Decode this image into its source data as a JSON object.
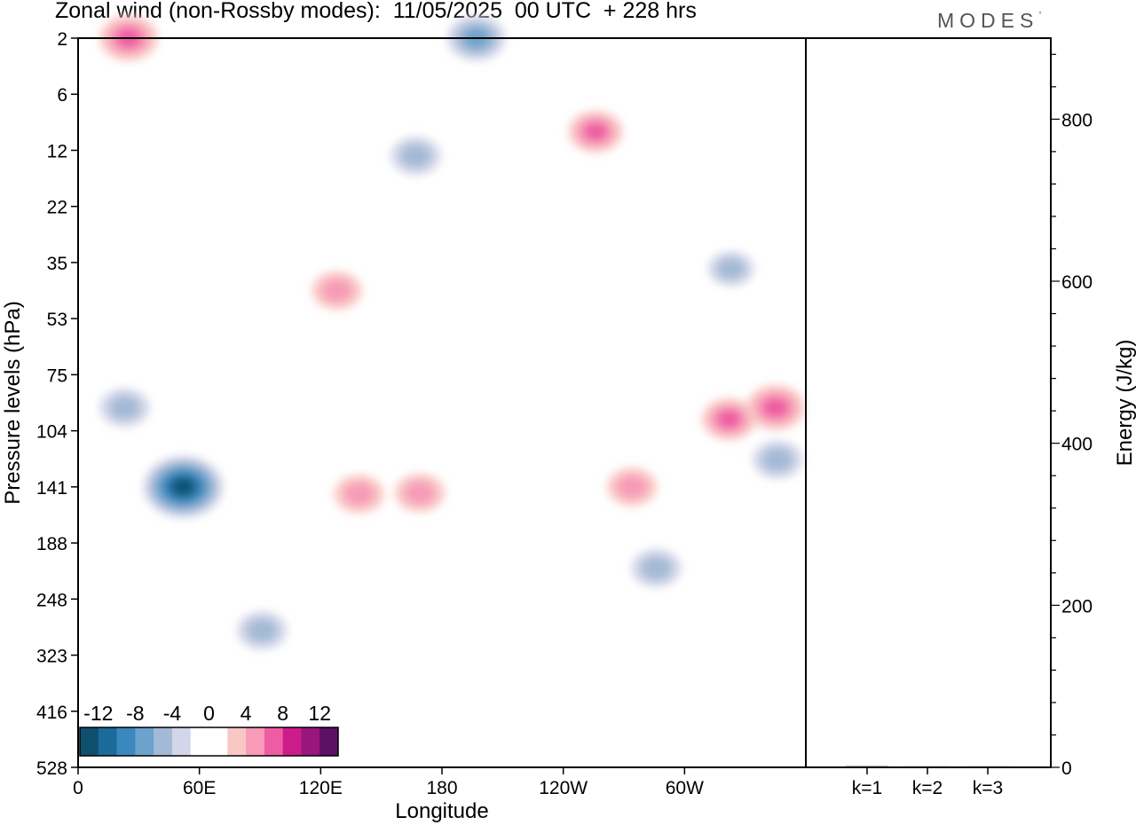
{
  "header": {
    "title": "Zonal wind (non-Rossby modes):  11/05/2025  00 UTC  + 228 hrs",
    "brand": "MODES",
    "brand_mark": "°"
  },
  "chart_data": [
    {
      "type": "heatmap",
      "title": "Zonal wind (non-Rossby modes):  11/05/2025  00 UTC  + 228 hrs",
      "xlabel": "Longitude",
      "ylabel": "Pressure levels (hPa)",
      "x_ticks": [
        "0",
        "60E",
        "120E",
        "180",
        "120W",
        "60W"
      ],
      "x_range_deg": [
        0,
        360
      ],
      "y_ticks": [
        2,
        6,
        12,
        22,
        35,
        53,
        75,
        104,
        141,
        188,
        248,
        323,
        416,
        528
      ],
      "y_axis": "levels, top = 2 hPa, bottom = 528 hPa",
      "colorbar": {
        "labels": [
          "-12",
          "-8",
          "-4",
          "0",
          "4",
          "8",
          "12"
        ],
        "levels": [
          -14,
          -12,
          -10,
          -8,
          -6,
          -4,
          -2,
          0,
          2,
          4,
          6,
          8,
          10,
          12,
          14
        ],
        "colors": [
          "#0f4f6e",
          "#1a6b9a",
          "#3a88be",
          "#6ba3cc",
          "#a3bad6",
          "#d3d6e8",
          "#ffffff",
          "#ffffff",
          "#f9c8c4",
          "#f79bb8",
          "#ee5ca3",
          "#cc1c8a",
          "#99167c",
          "#5c1066"
        ]
      },
      "features": [
        {
          "sign": "negative",
          "lon": 52,
          "level_hpa": 141,
          "peak": -12
        },
        {
          "sign": "negative",
          "lon": 23,
          "level_hpa": 92,
          "peak": -5
        },
        {
          "sign": "negative",
          "lon": 91,
          "level_hpa": 290,
          "peak": -5
        },
        {
          "sign": "negative",
          "lon": 197,
          "level_hpa": 2,
          "peak": -7
        },
        {
          "sign": "negative",
          "lon": 167,
          "level_hpa": 13,
          "peak": -5
        },
        {
          "sign": "negative",
          "lon": 286,
          "level_hpa": 215,
          "peak": -5
        },
        {
          "sign": "negative",
          "lon": 346,
          "level_hpa": 123,
          "peak": -5
        },
        {
          "sign": "negative",
          "lon": 323,
          "level_hpa": 37,
          "peak": -4
        },
        {
          "sign": "positive",
          "lon": 139,
          "level_hpa": 147,
          "peak": 5
        },
        {
          "sign": "positive",
          "lon": 169,
          "level_hpa": 146,
          "peak": 5
        },
        {
          "sign": "positive",
          "lon": 274,
          "level_hpa": 141,
          "peak": 5
        },
        {
          "sign": "positive",
          "lon": 322,
          "level_hpa": 98,
          "peak": 6
        },
        {
          "sign": "positive",
          "lon": 345,
          "level_hpa": 92,
          "peak": 7
        },
        {
          "sign": "positive",
          "lon": 256,
          "level_hpa": 10,
          "peak": 6
        },
        {
          "sign": "positive",
          "lon": 128,
          "level_hpa": 44,
          "peak": 5
        },
        {
          "sign": "positive",
          "lon": 25,
          "level_hpa": 2,
          "peak": 7
        }
      ]
    },
    {
      "type": "bar",
      "categories": [
        "k=1",
        "k=2",
        "k=3"
      ],
      "values": [
        1.5,
        1.0,
        0.6
      ],
      "ylabel": "Energy (J/kg)",
      "ylim": [
        0,
        900
      ],
      "y_ticks": [
        0,
        200,
        400,
        600,
        800
      ]
    }
  ]
}
